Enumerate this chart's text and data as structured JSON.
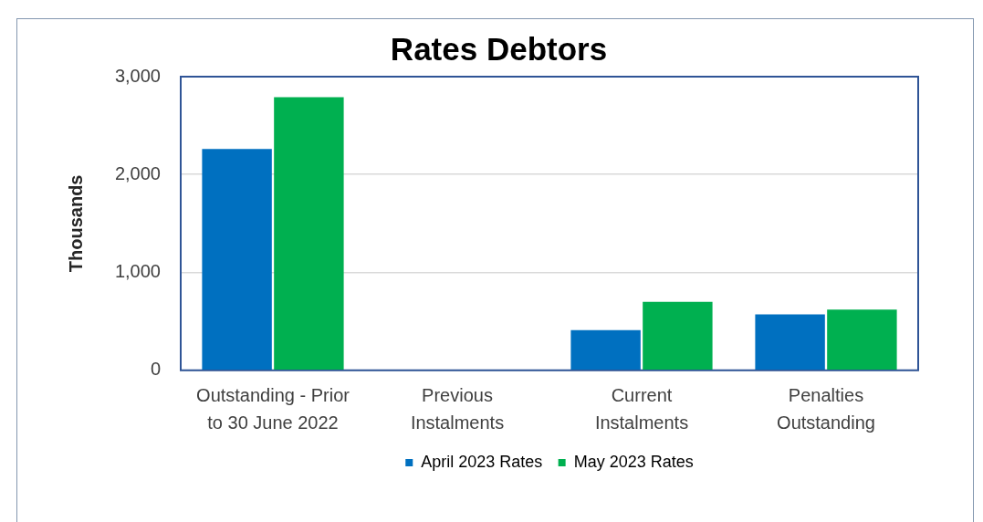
{
  "chart_data": {
    "type": "bar",
    "title": "Rates Debtors",
    "ylabel": "Thousands",
    "categories": [
      "Outstanding - Prior to 30 June 2022",
      "Previous Instalments",
      "Current Instalments",
      "Penalties Outstanding"
    ],
    "series": [
      {
        "name": "April 2023 Rates",
        "color": "#0070c0",
        "values": [
          2260,
          0,
          410,
          570
        ]
      },
      {
        "name": "May 2023 Rates",
        "color": "#00b050",
        "values": [
          2790,
          0,
          700,
          620
        ]
      }
    ],
    "ylim": [
      0,
      3000
    ],
    "yticks": [
      0,
      {
        "value": 1000,
        "label": "1,000"
      },
      {
        "value": 2000,
        "label": "2,000"
      },
      {
        "value": 3000,
        "label": "3,000"
      }
    ],
    "grid": "y",
    "legend": "bottom"
  }
}
